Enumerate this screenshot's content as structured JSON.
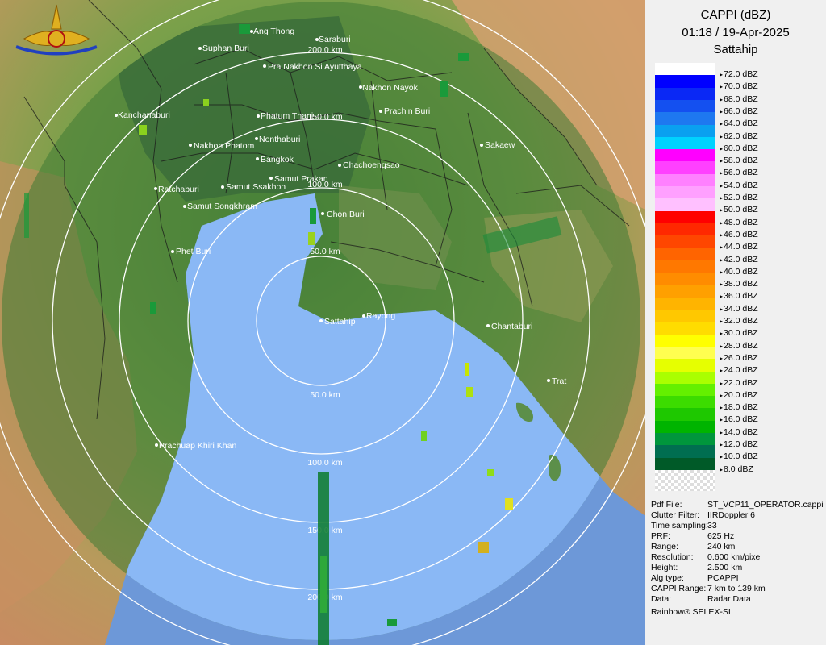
{
  "header": {
    "product": "CAPPI (dBZ)",
    "datetime": "01:18 / 19-Apr-2025",
    "station": "Sattahip"
  },
  "range_rings": [
    "50.0 km",
    "100.0 km",
    "150.0 km",
    "200.0 km"
  ],
  "cities": [
    "Ang Thong",
    "Saraburi",
    "Suphan Buri",
    "Pra Nakhon Si Ayutthaya",
    "Nakhon Nayok",
    "Kanchanaburi",
    "Phatum Thani",
    "Prachin Buri",
    "Nakhon Phatom",
    "Nonthaburi",
    "Sakaew",
    "Bangkok",
    "Chachoengsao",
    "Samut Prakan",
    "Ratchaburi",
    "Samut Ssakhon",
    "Samut Songkhram",
    "Chon Buri",
    "Phet Buri",
    "Sattahip",
    "Rayong",
    "Chantaburi",
    "Trat",
    "Prachuap Khiri Khan"
  ],
  "legend": {
    "unit": "dBZ",
    "levels": [
      "72.0 dBZ",
      "70.0 dBZ",
      "68.0 dBZ",
      "66.0 dBZ",
      "64.0 dBZ",
      "62.0 dBZ",
      "60.0 dBZ",
      "58.0 dBZ",
      "56.0 dBZ",
      "54.0 dBZ",
      "52.0 dBZ",
      "50.0 dBZ",
      "48.0 dBZ",
      "46.0 dBZ",
      "44.0 dBZ",
      "42.0 dBZ",
      "40.0 dBZ",
      "38.0 dBZ",
      "36.0 dBZ",
      "34.0 dBZ",
      "32.0 dBZ",
      "30.0 dBZ",
      "28.0 dBZ",
      "26.0 dBZ",
      "24.0 dBZ",
      "22.0 dBZ",
      "20.0 dBZ",
      "18.0 dBZ",
      "16.0 dBZ",
      "14.0 dBZ",
      "12.0 dBZ",
      "10.0 dBZ",
      "8.0 dBZ"
    ],
    "colors": [
      "#ffffff",
      "#0000ff",
      "#0a28f5",
      "#1450f0",
      "#1e78f0",
      "#0aa0f0",
      "#00d2ff",
      "#ff00ff",
      "#ff40ff",
      "#ff80ff",
      "#ffa0ff",
      "#ffc0ff",
      "#ff0000",
      "#ff2800",
      "#ff4600",
      "#ff6400",
      "#ff7800",
      "#ff8c00",
      "#ffa000",
      "#ffb400",
      "#ffc800",
      "#ffdc00",
      "#ffff00",
      "#ffff50",
      "#e6ff00",
      "#aaff00",
      "#64f000",
      "#3cdc00",
      "#1ec800",
      "#00b400",
      "#00963c",
      "#006e50",
      "#005a28"
    ]
  },
  "info": [
    {
      "key": "Pdf File:",
      "value": "ST_VCP11_OPERATOR.cappi"
    },
    {
      "key": "Clutter Filter:",
      "value": "IIRDoppler 6"
    },
    {
      "key": "Time sampling:",
      "value": "33"
    },
    {
      "key": "PRF:",
      "value": "625 Hz"
    },
    {
      "key": "Range:",
      "value": "240 km"
    },
    {
      "key": "Resolution:",
      "value": "0.600 km/pixel"
    },
    {
      "key": "Height:",
      "value": "2.500 km"
    },
    {
      "key": "Alg type:",
      "value": "PCAPPI"
    },
    {
      "key": "CAPPI Range:",
      "value": "7 km to 139 km"
    },
    {
      "key": "Data:",
      "value": "Radar Data"
    }
  ],
  "credit": "Rainbow® SELEX-SI"
}
